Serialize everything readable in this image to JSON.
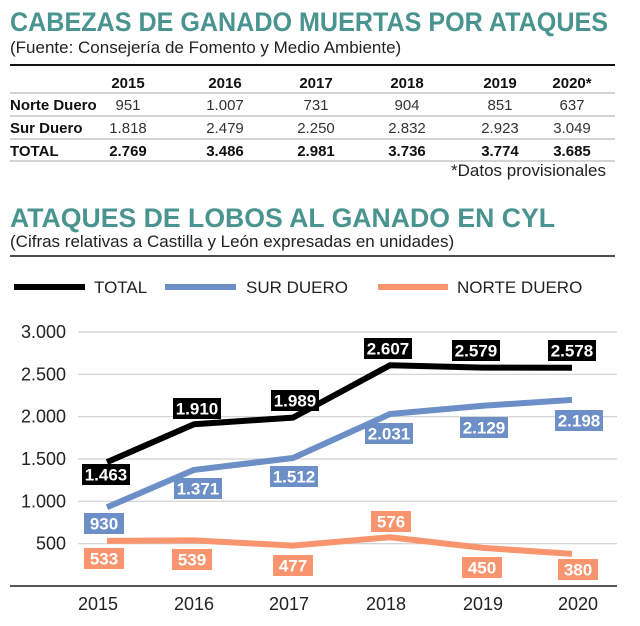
{
  "table": {
    "title": "CABEZAS DE GANADO MUERTAS POR ATAQUES",
    "subtitle": "(Fuente: Consejería de Fomento y Medio Ambiente)",
    "columns": [
      "2015",
      "2016",
      "2017",
      "2018",
      "2019",
      "2020*"
    ],
    "rows": [
      {
        "label": "Norte Duero",
        "values": [
          "951",
          "1.007",
          "731",
          "904",
          "851",
          "637"
        ]
      },
      {
        "label": "Sur Duero",
        "values": [
          "1.818",
          "2.479",
          "2.250",
          "2.832",
          "2.923",
          "3.049"
        ]
      },
      {
        "label": "TOTAL",
        "values": [
          "2.769",
          "3.486",
          "2.981",
          "3.736",
          "3.774",
          "3.685"
        ]
      }
    ],
    "footnote": "*Datos provisionales"
  },
  "chart_data": {
    "type": "line",
    "title": "ATAQUES DE LOBOS AL GANADO EN CYL",
    "subtitle": "(Cifras relativas a Castilla y León expresadas en unidades)",
    "x": [
      "2015",
      "2016",
      "2017",
      "2018",
      "2019",
      "2020"
    ],
    "ylim": [
      0,
      3000
    ],
    "yticks": [
      500,
      1000,
      1500,
      2000,
      2500,
      3000
    ],
    "ytick_labels": [
      "500",
      "1.000",
      "1.500",
      "2.000",
      "2.500",
      "3.000"
    ],
    "grid": true,
    "legend": "top",
    "series": [
      {
        "name": "TOTAL",
        "color": "#000000",
        "values": [
          1463,
          1910,
          1989,
          2607,
          2579,
          2578
        ],
        "labels": [
          "1.463",
          "1.910",
          "1.989",
          "2.607",
          "2.579",
          "2.578"
        ]
      },
      {
        "name": "SUR DUERO",
        "color": "#6b8fc6",
        "values": [
          930,
          1371,
          1512,
          2031,
          2129,
          2198
        ],
        "labels": [
          "930",
          "1.371",
          "1.512",
          "2.031",
          "2.129",
          "2.198"
        ]
      },
      {
        "name": "NORTE DUERO",
        "color": "#f8956e",
        "values": [
          533,
          539,
          477,
          576,
          450,
          380
        ],
        "labels": [
          "533",
          "539",
          "477",
          "576",
          "450",
          "380"
        ]
      }
    ]
  }
}
